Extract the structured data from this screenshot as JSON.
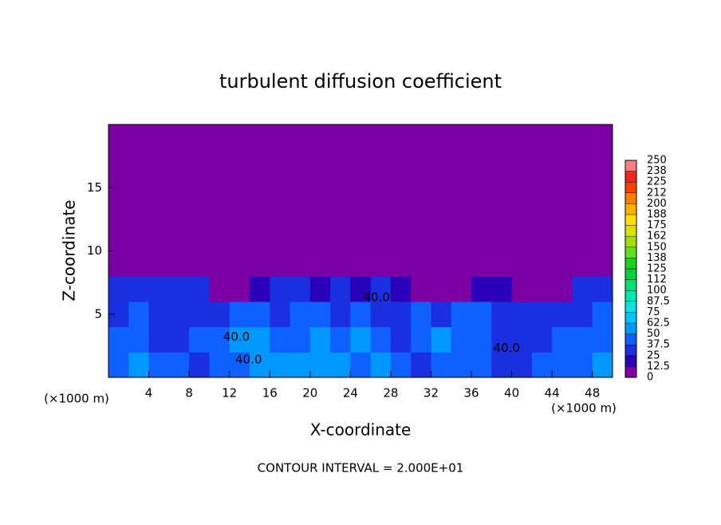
{
  "chart_data": {
    "type": "heatmap",
    "title": "turbulent diffusion coefficient",
    "x_label": "X-coordinate",
    "y_label": "Z-coordinate",
    "x_unit": "(×1000 m)",
    "y_unit": "(×1000 m)",
    "footnote": "CONTOUR INTERVAL = 2.000E+01",
    "xlim": [
      0,
      50
    ],
    "ylim": [
      0,
      20
    ],
    "xticks": [
      4,
      8,
      12,
      16,
      20,
      24,
      28,
      32,
      36,
      40,
      44,
      48
    ],
    "yticks": [
      5,
      10,
      15
    ],
    "x": [
      1,
      3,
      5,
      7,
      9,
      11,
      13,
      15,
      17,
      19,
      21,
      23,
      25,
      27,
      29,
      31,
      33,
      35,
      37,
      39,
      41,
      43,
      45,
      47,
      49
    ],
    "y": [
      1,
      3,
      5,
      7,
      9,
      11,
      13,
      15,
      17,
      19
    ],
    "z": [
      [
        40,
        55,
        45,
        40,
        35,
        40,
        45,
        50,
        55,
        60,
        55,
        60,
        45,
        50,
        40,
        35,
        40,
        45,
        40,
        35,
        35,
        40,
        40,
        45,
        50
      ],
      [
        45,
        40,
        35,
        35,
        40,
        45,
        50,
        55,
        40,
        45,
        50,
        45,
        60,
        40,
        35,
        40,
        50,
        40,
        45,
        35,
        35,
        35,
        40,
        40,
        45
      ],
      [
        35,
        40,
        30,
        35,
        35,
        30,
        40,
        45,
        35,
        40,
        40,
        35,
        40,
        30,
        35,
        40,
        35,
        45,
        40,
        35,
        30,
        30,
        35,
        35,
        40
      ],
      [
        30,
        25,
        30,
        30,
        25,
        10,
        5,
        20,
        30,
        25,
        15,
        25,
        20,
        30,
        15,
        5,
        5,
        5,
        20,
        15,
        5,
        5,
        10,
        25,
        30
      ],
      [
        0,
        0,
        0,
        0,
        0,
        0,
        0,
        0,
        0,
        0,
        0,
        0,
        0,
        0,
        0,
        0,
        0,
        0,
        0,
        0,
        0,
        0,
        0,
        0,
        0
      ],
      [
        0,
        0,
        0,
        0,
        0,
        0,
        0,
        0,
        0,
        0,
        0,
        0,
        0,
        0,
        0,
        0,
        0,
        0,
        0,
        0,
        0,
        0,
        0,
        0,
        0
      ],
      [
        0,
        0,
        0,
        0,
        0,
        0,
        0,
        0,
        0,
        0,
        0,
        0,
        0,
        0,
        0,
        0,
        0,
        0,
        0,
        0,
        0,
        0,
        0,
        0,
        0
      ],
      [
        0,
        0,
        0,
        0,
        0,
        0,
        0,
        0,
        0,
        0,
        0,
        0,
        0,
        0,
        0,
        0,
        0,
        0,
        0,
        0,
        0,
        0,
        0,
        0,
        0
      ],
      [
        0,
        0,
        0,
        0,
        0,
        0,
        0,
        0,
        0,
        0,
        0,
        0,
        0,
        0,
        0,
        0,
        0,
        0,
        0,
        0,
        0,
        0,
        0,
        0,
        0
      ],
      [
        0,
        0,
        0,
        0,
        0,
        0,
        0,
        0,
        0,
        0,
        0,
        0,
        0,
        0,
        0,
        0,
        0,
        0,
        0,
        0,
        0,
        0,
        0,
        0,
        0
      ]
    ],
    "contour_labels": [
      {
        "text": "40.0",
        "x": 12.7,
        "y": 3.2
      },
      {
        "text": "40.0",
        "x": 26.6,
        "y": 6.3
      },
      {
        "text": "40.0",
        "x": 39.5,
        "y": 2.3
      },
      {
        "text": "40.0",
        "x": 13.9,
        "y": 1.4
      }
    ],
    "colorbar": {
      "ticks": [
        0,
        12.5,
        25,
        37.5,
        50,
        62.5,
        75,
        87.5,
        100,
        {
          "value": 112.5,
          "label": "112"
        },
        125,
        {
          "value": 137.5,
          "label": "138"
        },
        150,
        {
          "value": 162.5,
          "label": "162"
        },
        175,
        {
          "value": 187.5,
          "label": "188"
        },
        200,
        {
          "value": 212.5,
          "label": "212"
        },
        225,
        {
          "value": 237.5,
          "label": "238"
        },
        250
      ],
      "colors": [
        "#7b00a4",
        "#2a00b8",
        "#1a30e0",
        "#1060ff",
        "#0098ff",
        "#00c4ff",
        "#00e4e4",
        "#00e8b4",
        "#00e070",
        "#00d040",
        "#20d020",
        "#60e020",
        "#a0e000",
        "#e0e000",
        "#ffe000",
        "#ffb000",
        "#ff8000",
        "#ff4000",
        "#ff2020",
        "#ff8080"
      ]
    }
  }
}
